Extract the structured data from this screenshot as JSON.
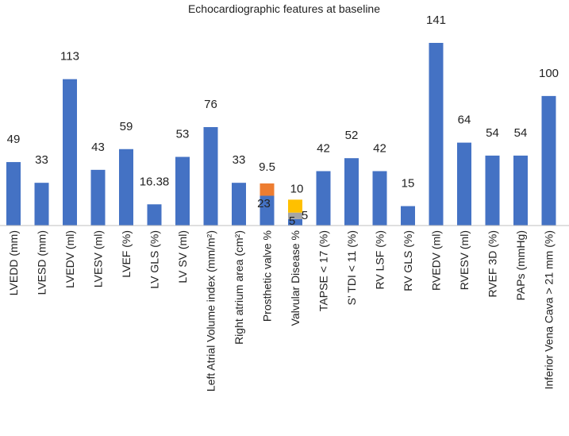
{
  "chart_data": {
    "type": "bar",
    "title": "Echocardiographic features at baseline",
    "categories": [
      "LVEDD (mm)",
      "LVESD (mm)",
      "LVEDV (ml)",
      "LVESV (ml)",
      "LVEF (%)",
      "LV GLS (%)",
      "LV SV (ml)",
      "Left Atrial Volume index (mm/m²)",
      "Right atrium area (cm²)",
      "Prosthetic valve %",
      "Valvular Disease %",
      "TAPSE < 17 (%)",
      "S' TDI < 11 (%)",
      "RV LSF (%)",
      "RV GLS (%)",
      "RVEDV (ml)",
      "RVESV (ml)",
      "RVEF 3D (%)",
      "PAPs (mmHg)",
      "Inferior Vena Cava > 21 mm (%)"
    ],
    "values": [
      49,
      33,
      113,
      43,
      59,
      16.38,
      53,
      76,
      33,
      null,
      null,
      42,
      52,
      42,
      15,
      141,
      64,
      54,
      54,
      100
    ],
    "value_labels": [
      "49",
      "33",
      "113",
      "43",
      "59",
      "16.38",
      "53",
      "76",
      "33",
      "",
      "",
      "42",
      "52",
      "42",
      "15",
      "141",
      "64",
      "54",
      "54",
      "100"
    ],
    "stacked": {
      "Prosthetic valve %": {
        "segments": [
          {
            "value": 23,
            "label": "23",
            "color": "#4472c4"
          },
          {
            "value": 9.5,
            "label": "9.5",
            "color": "#ed7d31"
          }
        ]
      },
      "Valvular Disease %": {
        "segments": [
          {
            "value": 5,
            "label": "5",
            "color": "#4472c4"
          },
          {
            "value": 5,
            "label": "5",
            "color": "#a5a5a5"
          },
          {
            "value": 10,
            "label": "10",
            "color": "#ffc000"
          }
        ]
      }
    },
    "bar_color": "#4472c4",
    "ylim": [
      0,
      145
    ],
    "grid": false,
    "legend": "none"
  }
}
